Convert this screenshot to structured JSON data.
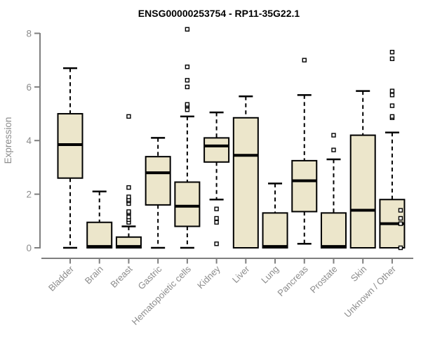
{
  "chart_data": {
    "type": "boxplot",
    "title": "ENSG00000253754 - RP11-35G22.1",
    "ylabel": "Expression",
    "ylim": [
      0,
      8
    ],
    "yticks": [
      0,
      2,
      4,
      6,
      8
    ],
    "grid": false,
    "legend": "none",
    "categories": [
      "Bladder",
      "Brain",
      "Breast",
      "Gastric",
      "Hematopoietic cells",
      "Kidney",
      "Liver",
      "Lung",
      "Pancreas",
      "Prostate",
      "Skin",
      "Unknown / Other"
    ],
    "series": [
      {
        "name": "Bladder",
        "low": 0,
        "q1": 2.6,
        "median": 3.85,
        "q3": 5.0,
        "high": 6.7,
        "outliers": []
      },
      {
        "name": "Brain",
        "low": 0,
        "q1": 0,
        "median": 0.05,
        "q3": 0.95,
        "high": 2.1,
        "outliers": []
      },
      {
        "name": "Breast",
        "low": 0,
        "q1": 0,
        "median": 0.05,
        "q3": 0.4,
        "high": 0.8,
        "outliers": [
          0.95,
          1.05,
          1.15,
          1.3,
          1.35,
          1.65,
          1.75,
          1.8,
          1.9,
          2.25,
          4.9
        ]
      },
      {
        "name": "Gastric",
        "low": 0,
        "q1": 1.6,
        "median": 2.8,
        "q3": 3.4,
        "high": 4.1,
        "outliers": []
      },
      {
        "name": "Hematopoietic cells",
        "low": 0,
        "q1": 0.8,
        "median": 1.55,
        "q3": 2.45,
        "high": 4.9,
        "outliers": [
          5.15,
          5.3,
          5.35,
          6.0,
          6.25,
          6.75,
          8.15
        ]
      },
      {
        "name": "Kidney",
        "low": 1.8,
        "q1": 3.2,
        "median": 3.8,
        "q3": 4.1,
        "high": 5.05,
        "outliers": [
          0.15,
          0.95,
          1.1,
          1.45
        ]
      },
      {
        "name": "Liver",
        "low": 0,
        "q1": 0,
        "median": 3.45,
        "q3": 4.85,
        "high": 5.65,
        "outliers": []
      },
      {
        "name": "Lung",
        "low": 0,
        "q1": 0,
        "median": 0.05,
        "q3": 1.3,
        "high": 2.4,
        "outliers": []
      },
      {
        "name": "Pancreas",
        "low": 0.15,
        "q1": 1.35,
        "median": 2.5,
        "q3": 3.25,
        "high": 5.7,
        "outliers": [
          7.0
        ]
      },
      {
        "name": "Prostate",
        "low": 0,
        "q1": 0,
        "median": 0.05,
        "q3": 1.3,
        "high": 3.3,
        "outliers": [
          3.65,
          4.2
        ]
      },
      {
        "name": "Skin",
        "low": 0,
        "q1": 0,
        "median": 1.4,
        "q3": 4.2,
        "high": 5.85,
        "outliers": []
      },
      {
        "name": "Unknown / Other",
        "low": 0,
        "q1": 0,
        "median": 0.9,
        "q3": 1.8,
        "high": 4.3,
        "outliers": [
          4.85,
          4.9,
          5.3,
          5.7,
          5.85,
          7.05,
          7.3
        ],
        "extra_outliers": [
          0,
          0.9,
          1.1,
          1.4
        ]
      }
    ],
    "colors": {
      "box_fill": "#ece6cb",
      "box_border": "#000000",
      "median": "#000000",
      "whisker": "#000000",
      "outlier_stroke": "#000000",
      "axis": "#7f7f7f",
      "tick_label": "#8c8c8c",
      "title": "#000000"
    }
  }
}
